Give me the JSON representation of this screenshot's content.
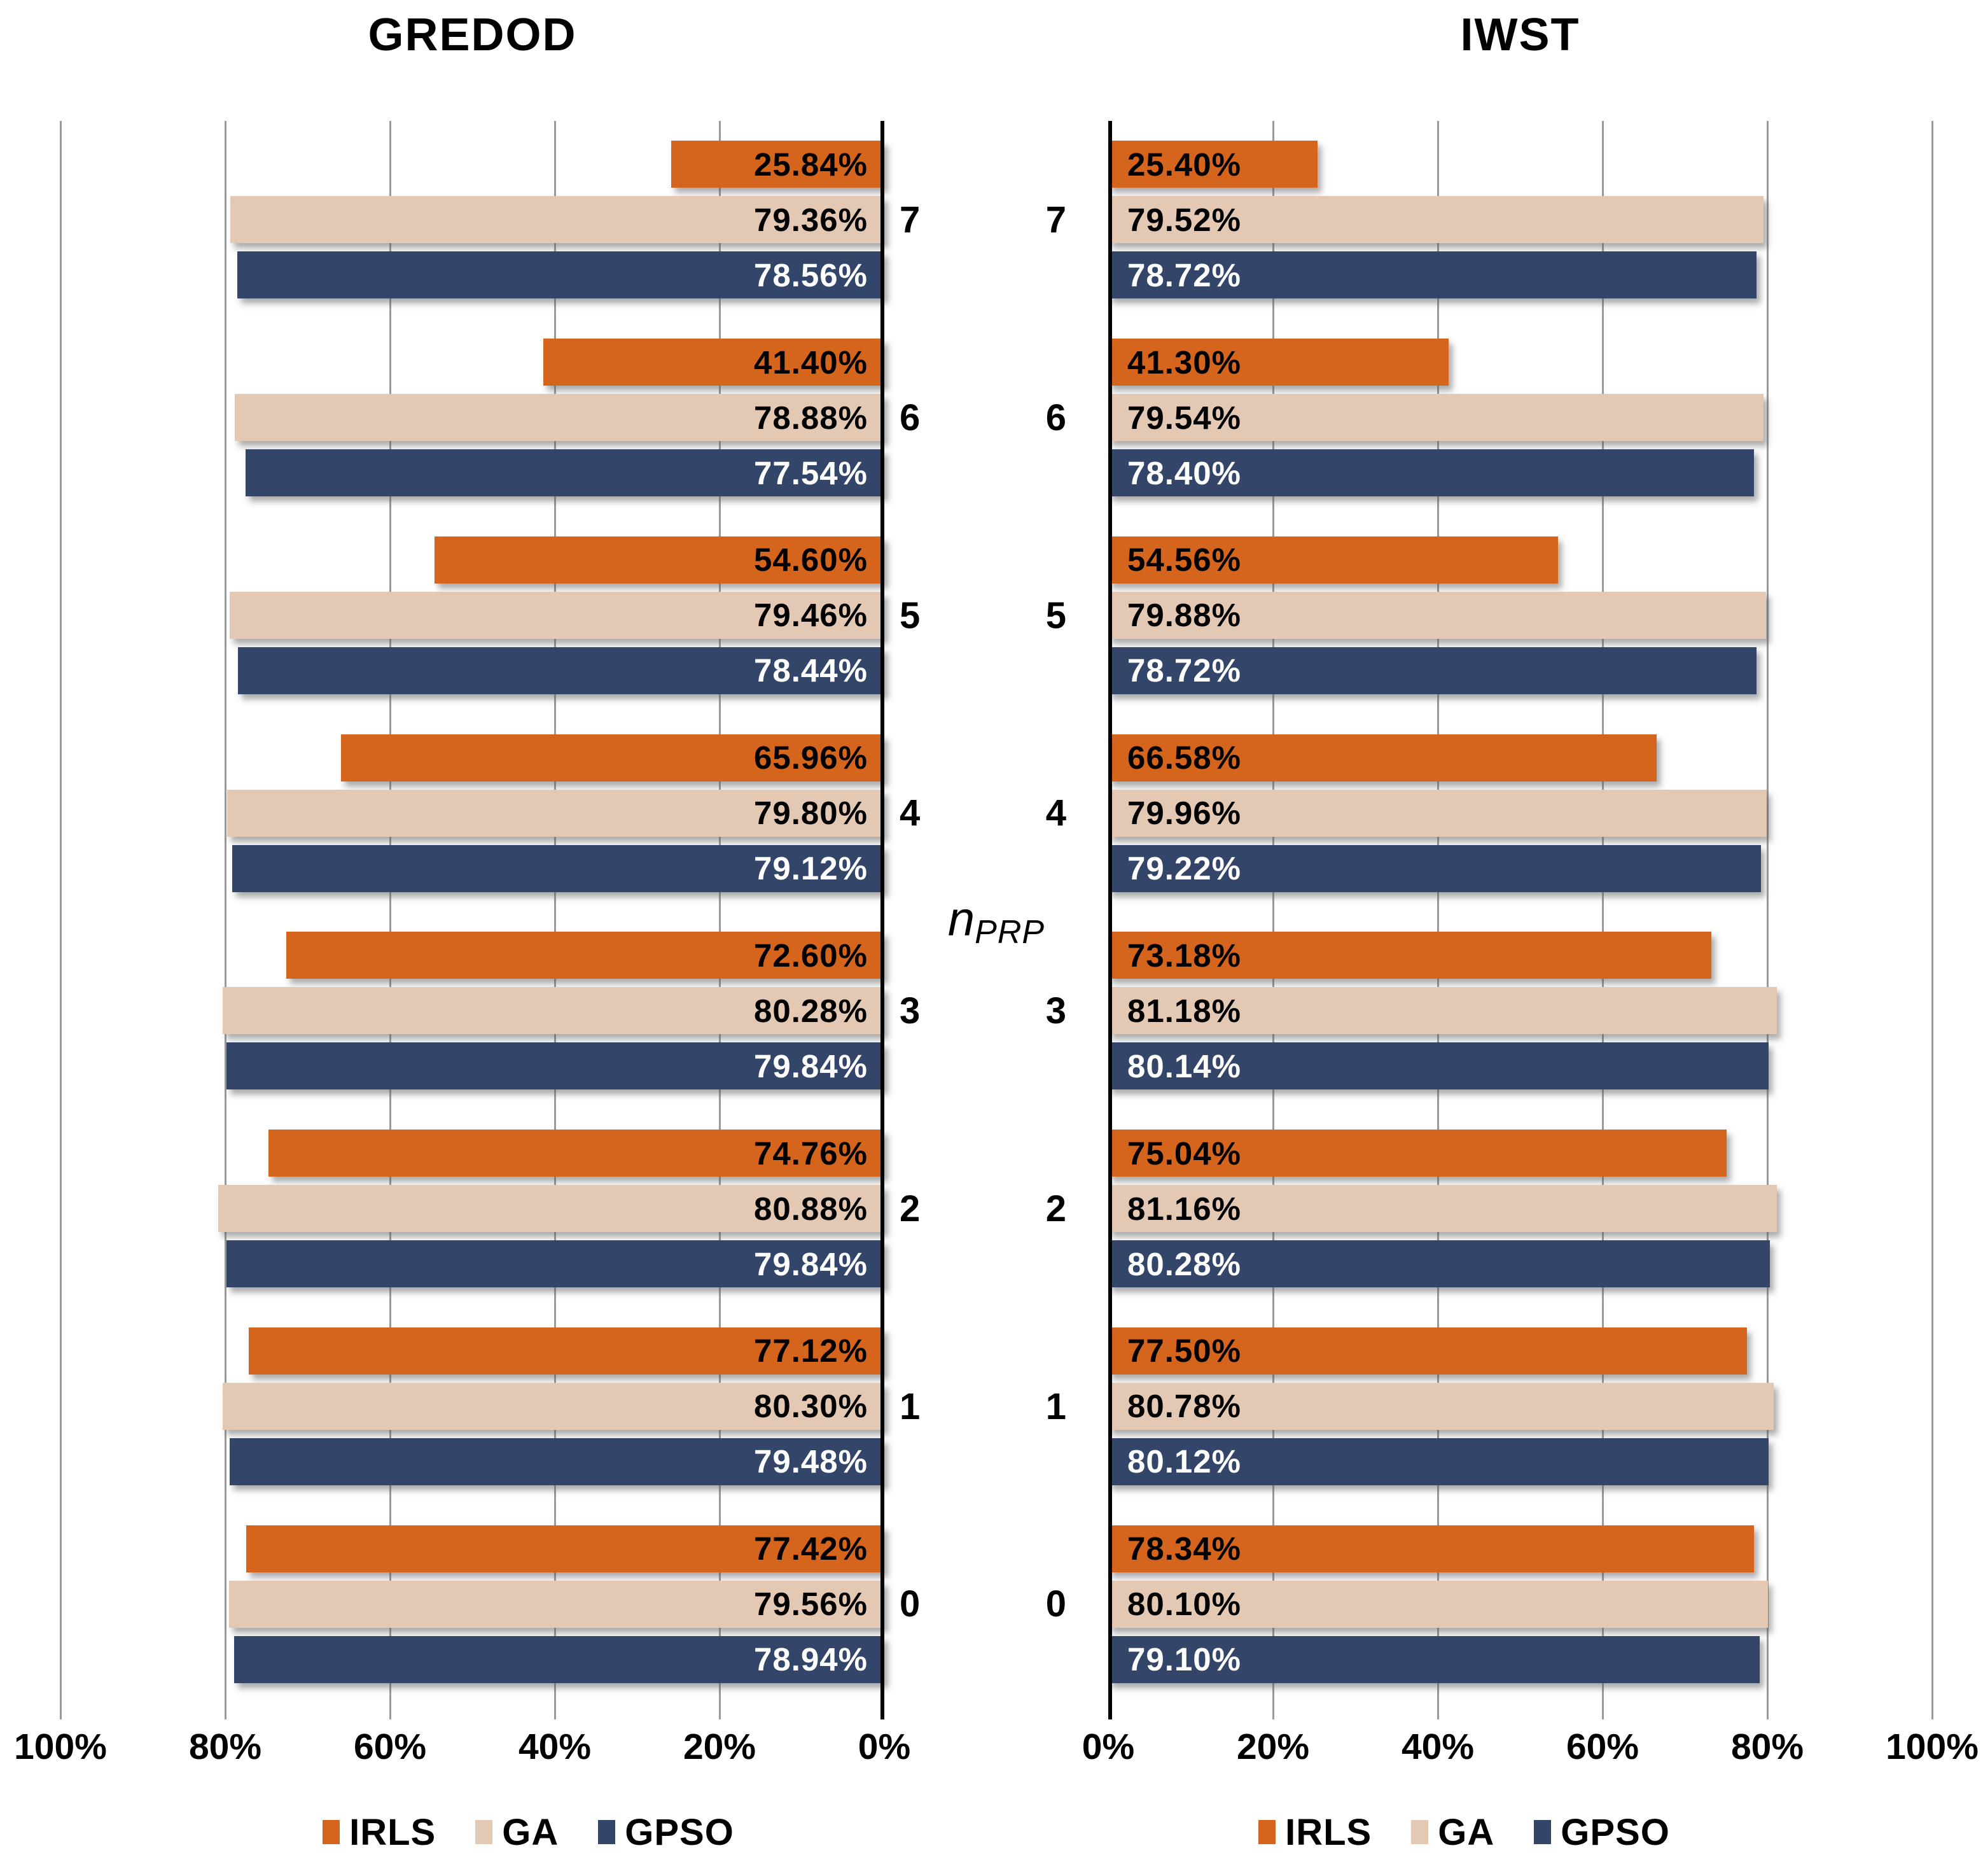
{
  "figure": {
    "center_axis_label": "n",
    "center_axis_label_sub": "PRP",
    "categories": [
      "7",
      "6",
      "5",
      "4",
      "3",
      "2",
      "1",
      "0"
    ],
    "colors": {
      "irls": "#D5641C",
      "ga": "#E3C8B4",
      "gpso": "#334568",
      "grid": "#9A9A9A",
      "axis": "#000000",
      "label_dark": "#000000",
      "label_light": "#FFFFFF"
    },
    "legend": [
      {
        "label": "IRLS",
        "color": "#D5641C"
      },
      {
        "label": "GA",
        "color": "#E3C8B4"
      },
      {
        "label": "GPSO",
        "color": "#334568"
      }
    ]
  },
  "chart_data": [
    {
      "type": "bar",
      "title": "GREDOD",
      "orientation": "horizontal",
      "direction": "right-to-left",
      "xlim": [
        0,
        100
      ],
      "grid": true,
      "ticks": [
        "100%",
        "80%",
        "60%",
        "40%",
        "20%",
        "0%"
      ],
      "categories": [
        "7",
        "6",
        "5",
        "4",
        "3",
        "2",
        "1",
        "0"
      ],
      "series": [
        {
          "name": "IRLS",
          "color": "#D5641C",
          "label_color": "#000000",
          "values": [
            25.84,
            41.4,
            54.6,
            65.96,
            72.6,
            74.76,
            77.12,
            77.42
          ],
          "labels": [
            "25.84%",
            "41.40%",
            "54.60%",
            "65.96%",
            "72.60%",
            "74.76%",
            "77.12%",
            "77.42%"
          ]
        },
        {
          "name": "GA",
          "color": "#E3C8B4",
          "label_color": "#000000",
          "values": [
            79.36,
            78.88,
            79.46,
            79.8,
            80.28,
            80.88,
            80.3,
            79.56
          ],
          "labels": [
            "79.36%",
            "78.88%",
            "79.46%",
            "79.80%",
            "80.28%",
            "80.88%",
            "80.30%",
            "79.56%"
          ]
        },
        {
          "name": "GPSO",
          "color": "#334568",
          "label_color": "#FFFFFF",
          "values": [
            78.56,
            77.54,
            78.44,
            79.12,
            79.84,
            79.84,
            79.48,
            78.94
          ],
          "labels": [
            "78.56%",
            "77.54%",
            "78.44%",
            "79.12%",
            "79.84%",
            "79.84%",
            "79.48%",
            "78.94%"
          ]
        }
      ]
    },
    {
      "type": "bar",
      "title": "IWST",
      "orientation": "horizontal",
      "direction": "left-to-right",
      "xlim": [
        0,
        100
      ],
      "grid": true,
      "ticks": [
        "0%",
        "20%",
        "40%",
        "60%",
        "80%",
        "100%"
      ],
      "categories": [
        "7",
        "6",
        "5",
        "4",
        "3",
        "2",
        "1",
        "0"
      ],
      "series": [
        {
          "name": "IRLS",
          "color": "#D5641C",
          "label_color": "#000000",
          "values": [
            25.4,
            41.3,
            54.56,
            66.58,
            73.18,
            75.04,
            77.5,
            78.34
          ],
          "labels": [
            "25.40%",
            "41.30%",
            "54.56%",
            "66.58%",
            "73.18%",
            "75.04%",
            "77.50%",
            "78.34%"
          ]
        },
        {
          "name": "GA",
          "color": "#E3C8B4",
          "label_color": "#000000",
          "values": [
            79.52,
            79.54,
            79.88,
            79.96,
            81.18,
            81.16,
            80.78,
            80.1
          ],
          "labels": [
            "79.52%",
            "79.54%",
            "79.88%",
            "79.96%",
            "81.18%",
            "81.16%",
            "80.78%",
            "80.10%"
          ]
        },
        {
          "name": "GPSO",
          "color": "#334568",
          "label_color": "#FFFFFF",
          "values": [
            78.72,
            78.4,
            78.72,
            79.22,
            80.14,
            80.28,
            80.12,
            79.1
          ],
          "labels": [
            "78.72%",
            "78.40%",
            "78.72%",
            "79.22%",
            "80.14%",
            "80.28%",
            "80.12%",
            "79.10%"
          ]
        }
      ]
    }
  ]
}
